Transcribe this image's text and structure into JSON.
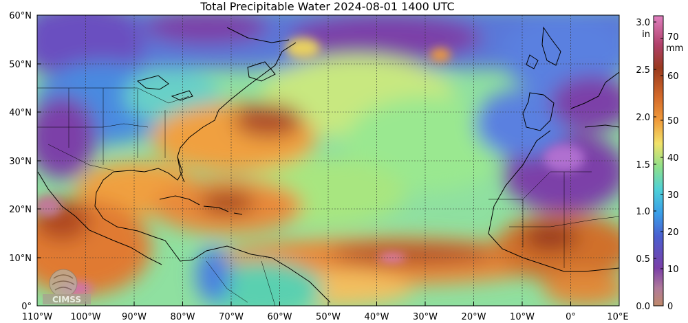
{
  "title": "Total Precipitable Water  2024-08-01 1400 UTC",
  "map": {
    "lat_labels": [
      "60°N",
      "50°N",
      "40°N",
      "30°N",
      "20°N",
      "10°N",
      "0°"
    ],
    "lon_labels": [
      "110°W",
      "100°W",
      "90°W",
      "80°W",
      "70°W",
      "60°W",
      "50°W",
      "40°W",
      "30°W",
      "20°W",
      "10°W",
      "0°",
      "10°E"
    ],
    "watermark": "CIMSS"
  },
  "colorbar": {
    "in_unit": "in",
    "mm_unit": "mm",
    "in_ticks": [
      "0.0",
      "0.5",
      "1.0",
      "1.5",
      "2.0",
      "2.5",
      "3.0"
    ],
    "mm_ticks": [
      "0",
      "10",
      "20",
      "30",
      "40",
      "50",
      "60",
      "70"
    ],
    "colors": {
      "low": "#c08a6a",
      "purple": "#7b3fa8",
      "blue": "#3a7fd8",
      "cyan": "#4ed0d8",
      "green": "#8fe08a",
      "yellow": "#f2e26a",
      "orange": "#f09a3a",
      "brown": "#9a3a1e",
      "pink": "#e080c0"
    }
  }
}
